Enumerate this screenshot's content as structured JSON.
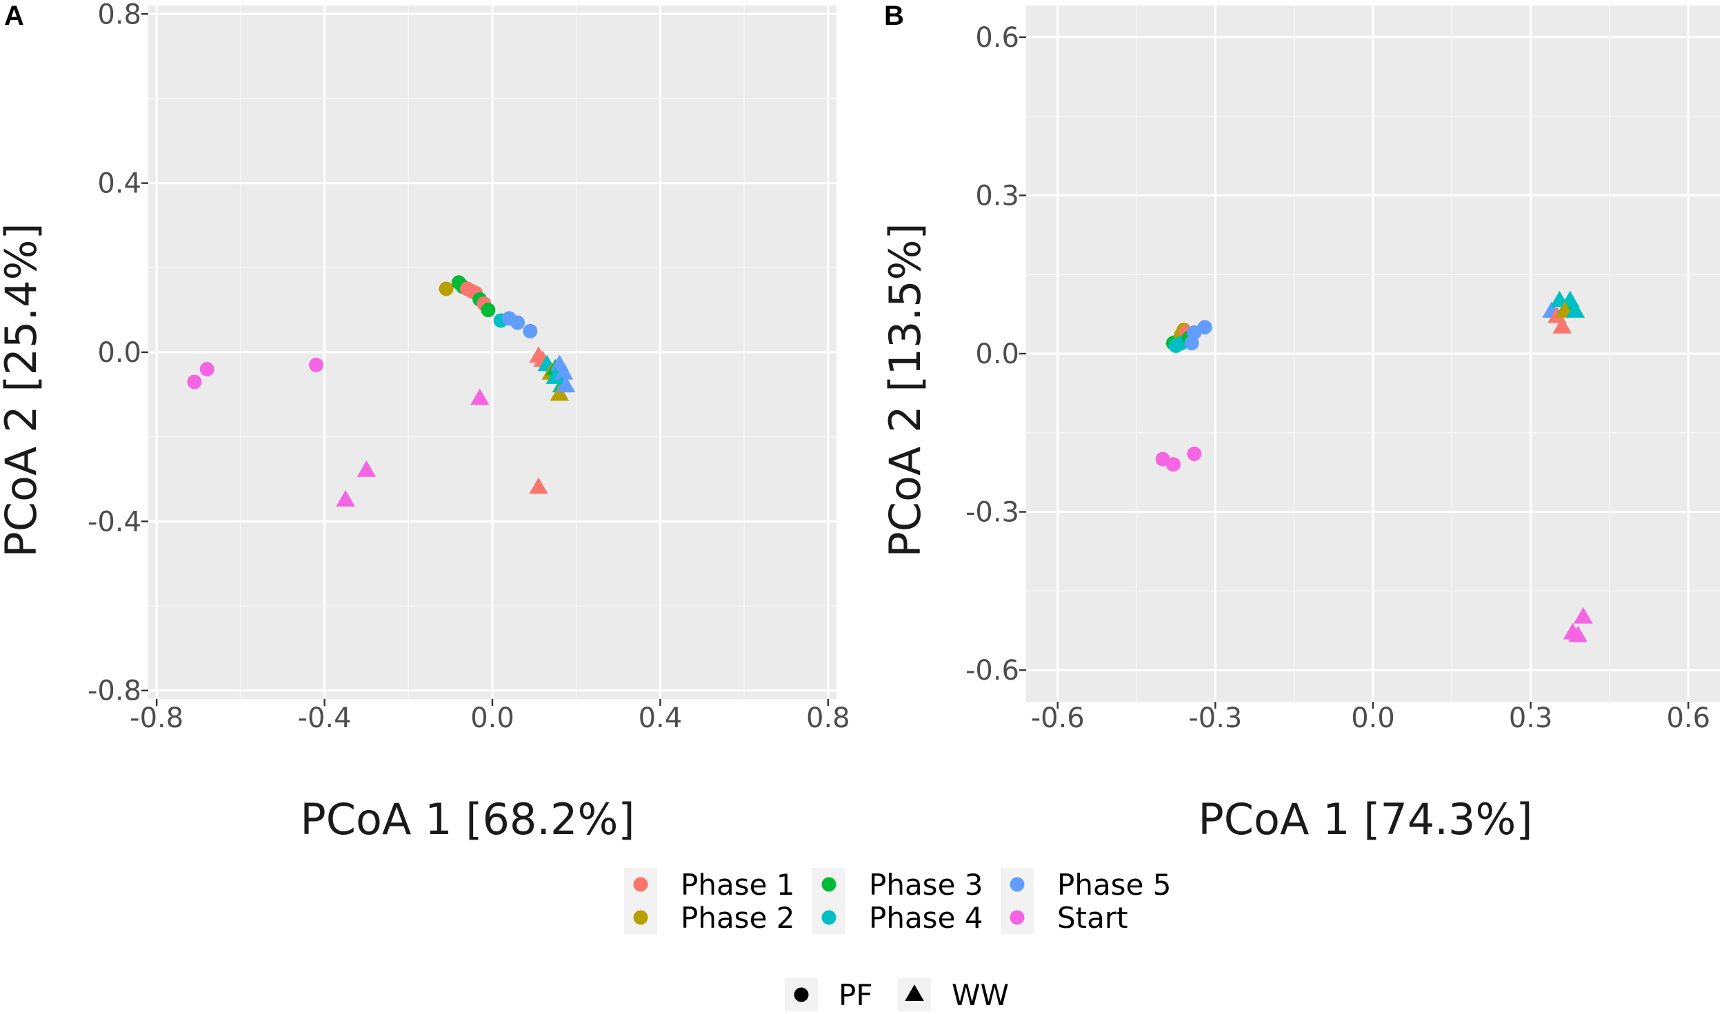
{
  "figure": {
    "panel_labels": [
      "A",
      "B"
    ]
  },
  "colors": {
    "Phase 1": "#F8766D",
    "Phase 2": "#B79F00",
    "Phase 3": "#00BA38",
    "Phase 4": "#00BFC4",
    "Phase 5": "#619CFF",
    "Start": "#F564E3"
  },
  "legend": {
    "color": [
      {
        "label": "Phase 1",
        "key": "Phase 1"
      },
      {
        "label": "Phase 2",
        "key": "Phase 2"
      },
      {
        "label": "Phase 3",
        "key": "Phase 3"
      },
      {
        "label": "Phase 4",
        "key": "Phase 4"
      },
      {
        "label": "Phase 5",
        "key": "Phase 5"
      },
      {
        "label": "Start",
        "key": "Start"
      }
    ],
    "shape": [
      {
        "label": "PF",
        "shape": "circle"
      },
      {
        "label": "WW",
        "shape": "triangle"
      }
    ]
  },
  "chart_data": [
    {
      "type": "scatter",
      "panel": "A",
      "xlabel": "PCoA 1 [68.2%]",
      "ylabel": "PCoA 2 [25.4%]",
      "xlim": [
        -0.82,
        0.82
      ],
      "ylim": [
        -0.82,
        0.82
      ],
      "xticks": [
        -0.8,
        -0.4,
        0.0,
        0.4,
        0.8
      ],
      "yticks": [
        -0.8,
        -0.4,
        0.0,
        0.4,
        0.8
      ],
      "xtick_labels": [
        "-0.8",
        "-0.4",
        "0.0",
        "0.4",
        "0.8"
      ],
      "ytick_labels": [
        "-0.8",
        "-0.4",
        "0.0",
        "0.4",
        "0.8"
      ],
      "grid": true,
      "points": [
        {
          "x": -0.71,
          "y": -0.07,
          "group": "Start",
          "shape": "circle"
        },
        {
          "x": -0.68,
          "y": -0.04,
          "group": "Start",
          "shape": "circle"
        },
        {
          "x": -0.42,
          "y": -0.03,
          "group": "Start",
          "shape": "circle"
        },
        {
          "x": -0.35,
          "y": -0.35,
          "group": "Start",
          "shape": "triangle"
        },
        {
          "x": -0.3,
          "y": -0.28,
          "group": "Start",
          "shape": "triangle"
        },
        {
          "x": -0.03,
          "y": -0.11,
          "group": "Start",
          "shape": "triangle"
        },
        {
          "x": 0.11,
          "y": -0.32,
          "group": "Phase 1",
          "shape": "triangle"
        },
        {
          "x": -0.11,
          "y": 0.15,
          "group": "Phase 2",
          "shape": "circle"
        },
        {
          "x": -0.08,
          "y": 0.165,
          "group": "Phase 3",
          "shape": "circle"
        },
        {
          "x": -0.07,
          "y": 0.155,
          "group": "Phase 3",
          "shape": "circle"
        },
        {
          "x": -0.06,
          "y": 0.15,
          "group": "Phase 1",
          "shape": "circle"
        },
        {
          "x": -0.05,
          "y": 0.145,
          "group": "Phase 1",
          "shape": "circle"
        },
        {
          "x": -0.04,
          "y": 0.14,
          "group": "Phase 1",
          "shape": "circle"
        },
        {
          "x": -0.03,
          "y": 0.125,
          "group": "Phase 3",
          "shape": "circle"
        },
        {
          "x": -0.02,
          "y": 0.115,
          "group": "Phase 1",
          "shape": "circle"
        },
        {
          "x": -0.01,
          "y": 0.1,
          "group": "Phase 3",
          "shape": "circle"
        },
        {
          "x": 0.02,
          "y": 0.075,
          "group": "Phase 4",
          "shape": "circle"
        },
        {
          "x": 0.04,
          "y": 0.08,
          "group": "Phase 5",
          "shape": "circle"
        },
        {
          "x": 0.06,
          "y": 0.07,
          "group": "Phase 5",
          "shape": "circle"
        },
        {
          "x": 0.09,
          "y": 0.05,
          "group": "Phase 5",
          "shape": "circle"
        },
        {
          "x": 0.11,
          "y": -0.01,
          "group": "Phase 1",
          "shape": "triangle"
        },
        {
          "x": 0.12,
          "y": -0.02,
          "group": "Phase 1",
          "shape": "triangle"
        },
        {
          "x": 0.13,
          "y": -0.03,
          "group": "Phase 4",
          "shape": "triangle"
        },
        {
          "x": 0.14,
          "y": -0.05,
          "group": "Phase 2",
          "shape": "triangle"
        },
        {
          "x": 0.15,
          "y": -0.04,
          "group": "Phase 3",
          "shape": "triangle"
        },
        {
          "x": 0.16,
          "y": -0.03,
          "group": "Phase 5",
          "shape": "triangle"
        },
        {
          "x": 0.15,
          "y": -0.06,
          "group": "Phase 4",
          "shape": "triangle"
        },
        {
          "x": 0.17,
          "y": -0.05,
          "group": "Phase 5",
          "shape": "triangle"
        },
        {
          "x": 0.165,
          "y": -0.08,
          "group": "Phase 4",
          "shape": "triangle"
        },
        {
          "x": 0.16,
          "y": -0.1,
          "group": "Phase 2",
          "shape": "triangle"
        },
        {
          "x": 0.175,
          "y": -0.08,
          "group": "Phase 5",
          "shape": "triangle"
        }
      ]
    },
    {
      "type": "scatter",
      "panel": "B",
      "xlabel": "PCoA 1 [74.3%]",
      "ylabel": "PCoA 2 [13.5%]",
      "xlim": [
        -0.66,
        0.66
      ],
      "ylim": [
        -0.66,
        0.66
      ],
      "xticks": [
        -0.6,
        -0.3,
        0.0,
        0.3,
        0.6
      ],
      "yticks": [
        -0.6,
        -0.3,
        0.0,
        0.3,
        0.6
      ],
      "xtick_labels": [
        "-0.6",
        "-0.3",
        "0.0",
        "0.3",
        "0.6"
      ],
      "ytick_labels": [
        "-0.6",
        "-0.3",
        "0.0",
        "0.3",
        "0.6"
      ],
      "grid": true,
      "points": [
        {
          "x": -0.38,
          "y": 0.02,
          "group": "Phase 3",
          "shape": "circle"
        },
        {
          "x": -0.37,
          "y": 0.025,
          "group": "Phase 3",
          "shape": "circle"
        },
        {
          "x": -0.365,
          "y": 0.035,
          "group": "Phase 2",
          "shape": "circle"
        },
        {
          "x": -0.36,
          "y": 0.045,
          "group": "Phase 2",
          "shape": "circle"
        },
        {
          "x": -0.355,
          "y": 0.04,
          "group": "Phase 1",
          "shape": "circle"
        },
        {
          "x": -0.375,
          "y": 0.015,
          "group": "Phase 4",
          "shape": "circle"
        },
        {
          "x": -0.365,
          "y": 0.02,
          "group": "Phase 4",
          "shape": "circle"
        },
        {
          "x": -0.35,
          "y": 0.03,
          "group": "Phase 3",
          "shape": "circle"
        },
        {
          "x": -0.345,
          "y": 0.02,
          "group": "Phase 5",
          "shape": "circle"
        },
        {
          "x": -0.34,
          "y": 0.04,
          "group": "Phase 5",
          "shape": "circle"
        },
        {
          "x": -0.32,
          "y": 0.05,
          "group": "Phase 5",
          "shape": "circle"
        },
        {
          "x": -0.4,
          "y": -0.2,
          "group": "Start",
          "shape": "circle"
        },
        {
          "x": -0.38,
          "y": -0.21,
          "group": "Start",
          "shape": "circle"
        },
        {
          "x": -0.34,
          "y": -0.19,
          "group": "Start",
          "shape": "circle"
        },
        {
          "x": 0.34,
          "y": 0.08,
          "group": "Phase 5",
          "shape": "triangle"
        },
        {
          "x": 0.35,
          "y": 0.07,
          "group": "Phase 1",
          "shape": "triangle"
        },
        {
          "x": 0.36,
          "y": 0.05,
          "group": "Phase 1",
          "shape": "triangle"
        },
        {
          "x": 0.355,
          "y": 0.1,
          "group": "Phase 4",
          "shape": "triangle"
        },
        {
          "x": 0.37,
          "y": 0.09,
          "group": "Phase 3",
          "shape": "triangle"
        },
        {
          "x": 0.375,
          "y": 0.1,
          "group": "Phase 4",
          "shape": "triangle"
        },
        {
          "x": 0.365,
          "y": 0.08,
          "group": "Phase 2",
          "shape": "triangle"
        },
        {
          "x": 0.385,
          "y": 0.08,
          "group": "Phase 4",
          "shape": "triangle"
        },
        {
          "x": 0.38,
          "y": -0.53,
          "group": "Start",
          "shape": "triangle"
        },
        {
          "x": 0.39,
          "y": -0.535,
          "group": "Start",
          "shape": "triangle"
        },
        {
          "x": 0.4,
          "y": -0.5,
          "group": "Start",
          "shape": "triangle"
        }
      ]
    }
  ]
}
